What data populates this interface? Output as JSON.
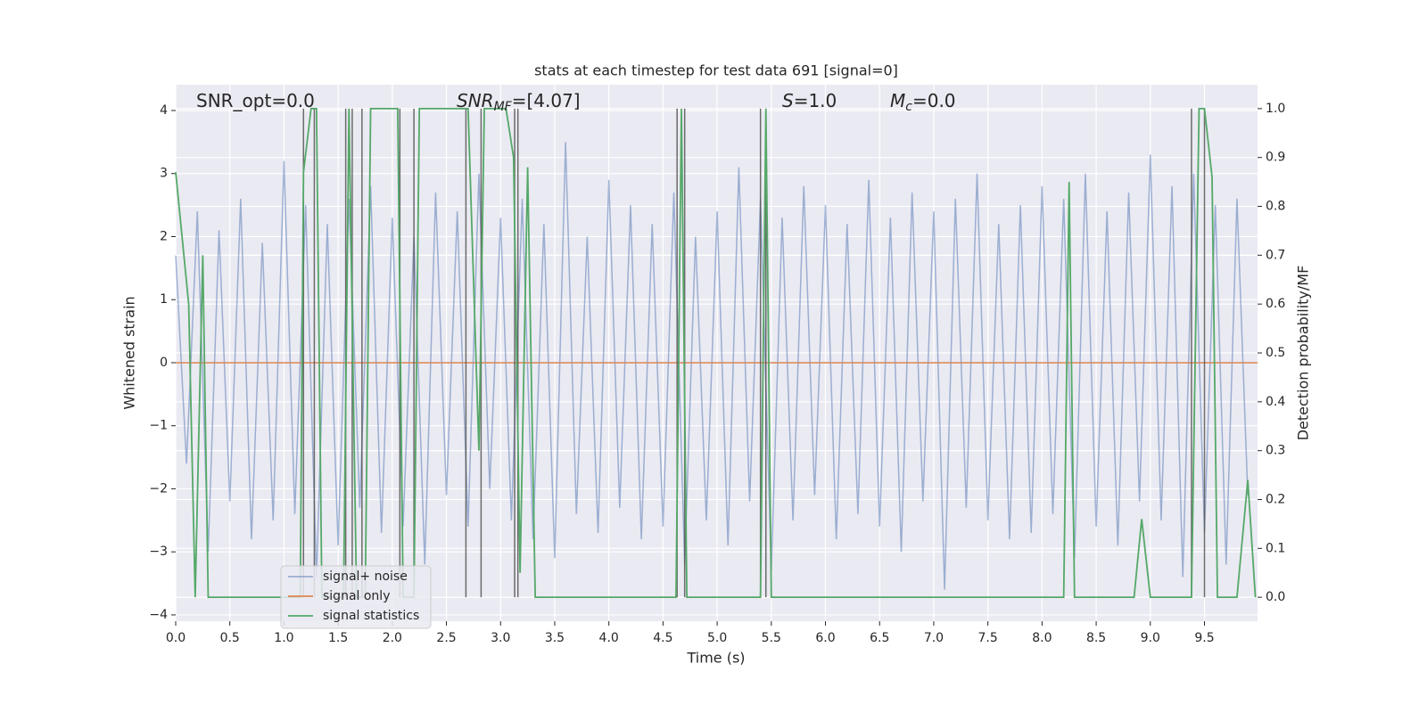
{
  "chart_data": {
    "type": "line",
    "title": "stats at each timestep for test data 691 [signal=0]",
    "xlabel": "Time (s)",
    "ylabel": "Whitened strain",
    "y2label": "Detection probability/MF",
    "annotations": [
      {
        "main": "SNR_opt=0.0"
      },
      {
        "main": "SNR",
        "sub": "MF",
        "rest": "=[4.07]"
      },
      {
        "main": "S",
        "rest": "=1.0"
      },
      {
        "main": "M",
        "sub": "c",
        "rest": "=0.0"
      }
    ],
    "xlim": [
      0,
      9.99
    ],
    "xticks": [
      {
        "value": 0,
        "label": "0.0"
      },
      {
        "value": 0.5,
        "label": "0.5"
      },
      {
        "value": 1,
        "label": "1.0"
      },
      {
        "value": 1.5,
        "label": "1.5"
      },
      {
        "value": 2,
        "label": "2.0"
      },
      {
        "value": 2.5,
        "label": "2.5"
      },
      {
        "value": 3,
        "label": "3.0"
      },
      {
        "value": 3.5,
        "label": "3.5"
      },
      {
        "value": 4,
        "label": "4.0"
      },
      {
        "value": 4.5,
        "label": "4.5"
      },
      {
        "value": 5,
        "label": "5.0"
      },
      {
        "value": 5.5,
        "label": "5.5"
      },
      {
        "value": 6,
        "label": "6.0"
      },
      {
        "value": 6.5,
        "label": "6.5"
      },
      {
        "value": 7,
        "label": "7.0"
      },
      {
        "value": 7.5,
        "label": "7.5"
      },
      {
        "value": 8,
        "label": "8.0"
      },
      {
        "value": 8.5,
        "label": "8.5"
      },
      {
        "value": 9,
        "label": "9.0"
      },
      {
        "value": 9.5,
        "label": "9.5"
      }
    ],
    "ylim": [
      -4.1,
      4.41
    ],
    "yticks": [
      {
        "value": -4,
        "label": "−4"
      },
      {
        "value": -3,
        "label": "−3"
      },
      {
        "value": -2,
        "label": "−2"
      },
      {
        "value": -1,
        "label": "−1"
      },
      0,
      1,
      2,
      3,
      4
    ],
    "y2lim": [
      -0.049,
      1.049
    ],
    "y2ticks": [
      {
        "value": 0,
        "label": "0.0"
      },
      {
        "value": 0.1,
        "label": "0.1"
      },
      {
        "value": 0.2,
        "label": "0.2"
      },
      {
        "value": 0.3,
        "label": "0.3"
      },
      {
        "value": 0.4,
        "label": "0.4"
      },
      {
        "value": 0.5,
        "label": "0.5"
      },
      {
        "value": 0.6,
        "label": "0.6"
      },
      {
        "value": 0.7,
        "label": "0.7"
      },
      {
        "value": 0.8,
        "label": "0.8"
      },
      {
        "value": 0.9,
        "label": "0.9"
      },
      {
        "value": 1,
        "label": "1.0"
      }
    ],
    "grid": true,
    "legend_loc": "lower left",
    "series": [
      {
        "name": "signal+ noise",
        "color": "#4c72b0",
        "x": [
          0.0,
          0.1,
          0.2,
          0.3,
          0.4,
          0.5,
          0.6,
          0.7,
          0.8,
          0.9,
          1.0,
          1.1,
          1.2,
          1.3,
          1.4,
          1.5,
          1.6,
          1.7,
          1.8,
          1.9,
          2.0,
          2.1,
          2.2,
          2.3,
          2.4,
          2.5,
          2.6,
          2.7,
          2.8,
          2.9,
          3.0,
          3.1,
          3.2,
          3.3,
          3.4,
          3.5,
          3.6,
          3.7,
          3.8,
          3.9,
          4.0,
          4.1,
          4.2,
          4.3,
          4.4,
          4.5,
          4.6,
          4.7,
          4.8,
          4.9,
          5.0,
          5.1,
          5.2,
          5.3,
          5.4,
          5.5,
          5.6,
          5.7,
          5.8,
          5.9,
          6.0,
          6.1,
          6.2,
          6.3,
          6.4,
          6.5,
          6.6,
          6.7,
          6.8,
          6.9,
          7.0,
          7.1,
          7.2,
          7.3,
          7.4,
          7.5,
          7.6,
          7.7,
          7.8,
          7.9,
          8.0,
          8.1,
          8.2,
          8.3,
          8.4,
          8.5,
          8.6,
          8.7,
          8.8,
          8.9,
          9.0,
          9.1,
          9.2,
          9.3,
          9.4,
          9.5,
          9.6,
          9.7,
          9.8,
          9.9
        ],
        "values": [
          1.7,
          -1.6,
          2.4,
          -3.0,
          2.1,
          -2.2,
          2.6,
          -2.8,
          1.9,
          -2.5,
          3.2,
          -2.4,
          2.5,
          -3.4,
          2.2,
          -2.9,
          2.6,
          -2.3,
          2.8,
          -2.7,
          2.3,
          -2.6,
          2.0,
          -3.2,
          2.7,
          -2.1,
          2.4,
          -2.6,
          3.0,
          -2.0,
          2.3,
          -2.5,
          2.6,
          -2.8,
          2.2,
          -3.1,
          3.5,
          -2.4,
          2.0,
          -2.7,
          2.9,
          -2.3,
          2.5,
          -2.8,
          2.2,
          -2.6,
          2.7,
          -3.2,
          2.0,
          -2.5,
          2.4,
          -2.9,
          3.1,
          -2.2,
          2.6,
          -3.3,
          2.3,
          -2.5,
          2.8,
          -2.1,
          2.5,
          -2.8,
          2.2,
          -2.4,
          2.9,
          -2.6,
          2.3,
          -3.0,
          2.7,
          -2.2,
          2.4,
          -3.6,
          2.6,
          -2.3,
          3.0,
          -2.5,
          2.2,
          -2.8,
          2.5,
          -2.7,
          2.8,
          -2.4,
          2.6,
          -3.1,
          3.0,
          -2.6,
          2.4,
          -2.9,
          2.7,
          -2.2,
          3.3,
          -2.5,
          2.8,
          -3.4,
          3.0,
          -2.7,
          2.5,
          -3.2,
          2.6,
          -2.1
        ]
      },
      {
        "name": "signal only",
        "color": "#dd8452",
        "x": [
          0,
          9.99
        ],
        "values": [
          0,
          0
        ]
      },
      {
        "name": "signal statistics",
        "color": "#55a868",
        "axis": "y2",
        "x": [
          0,
          0.12,
          0.18,
          0.25,
          0.3,
          0.9,
          1.0,
          1.15,
          1.18,
          1.25,
          1.3,
          1.35,
          1.55,
          1.6,
          1.67,
          1.75,
          1.8,
          2.05,
          2.1,
          2.2,
          2.25,
          2.7,
          2.8,
          2.85,
          3.05,
          3.12,
          3.18,
          3.25,
          3.32,
          4.62,
          4.67,
          4.72,
          5.4,
          5.45,
          5.5,
          8.2,
          8.25,
          8.3,
          8.85,
          8.92,
          9.0,
          9.38,
          9.45,
          9.5,
          9.57,
          9.62,
          9.8,
          9.9,
          9.97
        ],
        "values": [
          0.87,
          0.6,
          0.0,
          0.7,
          0.0,
          0.0,
          0.0,
          0.0,
          0.87,
          1.0,
          1.0,
          0.0,
          0.0,
          1.0,
          0.0,
          0.0,
          1.0,
          1.0,
          0.0,
          0.0,
          1.0,
          1.0,
          0.3,
          1.0,
          1.0,
          0.9,
          0.05,
          0.88,
          0.0,
          0.0,
          1.0,
          0.0,
          0.0,
          1.0,
          0.0,
          0.0,
          0.85,
          0.0,
          0.0,
          0.16,
          0.0,
          0.0,
          1.0,
          1.0,
          0.86,
          0.0,
          0.0,
          0.24,
          0.0
        ]
      }
    ],
    "vlines": {
      "color": "#555555",
      "x": [
        1.18,
        1.28,
        1.57,
        1.63,
        1.72,
        2.07,
        2.2,
        2.68,
        2.82,
        3.13,
        3.16,
        4.63,
        4.7,
        5.4,
        5.45,
        9.38,
        9.5
      ]
    }
  }
}
